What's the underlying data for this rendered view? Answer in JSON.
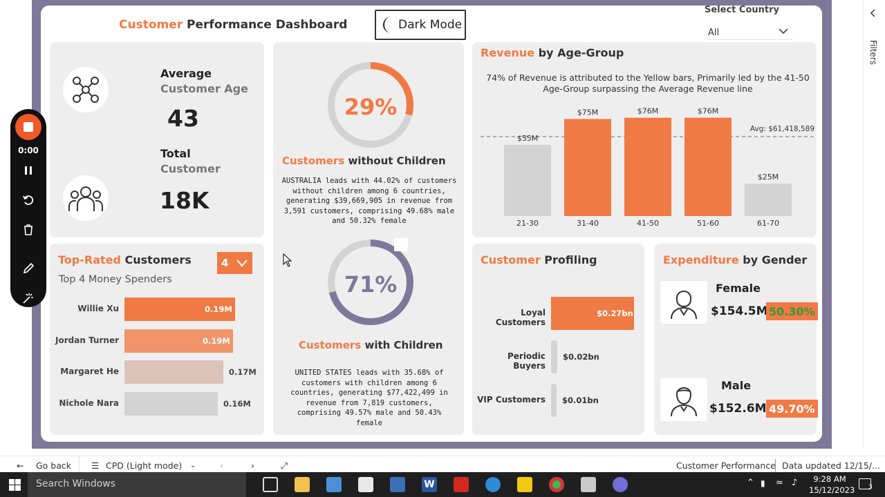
{
  "header": {
    "title_part1": "Customer",
    "title_part2": " Performance Dashboard",
    "dark_mode_label": "Dark Mode",
    "select_country_label": "Select Country",
    "select_country_value": "All"
  },
  "kpi": {
    "age_label": "Average",
    "age_sub": "Customer Age",
    "age_value": "43",
    "total_label": "Total",
    "total_sub": "Customer",
    "total_value": "18K"
  },
  "children": {
    "no_children_pct": "29%",
    "no_children_fraction": 0.29,
    "no_children_title_a": "Customers",
    "no_children_title_b": " without Children",
    "no_children_text": "AUSTRALIA leads with 44.02% of customers without children among 6 countries, generating $39,669,905 in revenue from 3,591 customers, comprising 49.68% male and 50.32% female",
    "with_children_pct": "71%",
    "with_children_fraction": 0.71,
    "with_children_title_a": "Customers",
    "with_children_title_b": " with Children",
    "with_children_text": "UNITED STATES leads with 35.68% of customers with children among 6 countries, generating $77,422,499 in revenue from 7,819 customers, comprising 49.57% male and 50.43% female"
  },
  "age_chart_card": {
    "title_a": "Revenue",
    "title_b": " by Age-Group",
    "subtitle": "74% of Revenue is attributed to the Yellow bars, Primarily led by the 41-50 Age-Group surpassing the Average Revenue line",
    "avg_label": "Avg: $61,418,589"
  },
  "chart_data": [
    {
      "type": "bar",
      "categories": [
        "21-30",
        "31-40",
        "41-50",
        "51-60",
        "61-70"
      ],
      "values": [
        55,
        75,
        76,
        76,
        25
      ],
      "data_labels": [
        "$55M",
        "$75M",
        "$76M",
        "$76M",
        "$25M"
      ],
      "highlight": [
        false,
        true,
        true,
        true,
        false
      ],
      "avg_line": 61.418589,
      "ylim": [
        0,
        80
      ],
      "colors": {
        "highlight": "#f07a44",
        "normal": "#d3d3d3"
      }
    }
  ],
  "top_rated": {
    "title_a": "Top-Rated",
    "title_b": " Customers",
    "subtitle": "Top 4 Money Spenders",
    "count_selected": "4",
    "rows": [
      {
        "name": "Willie Xu",
        "label": "0.19M",
        "value": 0.19,
        "color": "#f07a44",
        "inside": true
      },
      {
        "name": "Jordan Turner",
        "label": "0.19M",
        "value": 0.187,
        "color": "#f1946a",
        "inside": true
      },
      {
        "name": "Margaret He",
        "label": "0.17M",
        "value": 0.17,
        "color": "#dcc3b9",
        "inside": false
      },
      {
        "name": "Nichole Nara",
        "label": "0.16M",
        "value": 0.16,
        "color": "#d3d3d3",
        "inside": false
      }
    ]
  },
  "profiling": {
    "title_a": "Customer",
    "title_b": " Profiling",
    "rows": [
      {
        "name": "Loyal Customers",
        "label": "$0.27bn",
        "value": 0.27
      },
      {
        "name": "Periodic Buyers",
        "label": "$0.02bn",
        "value": 0.02
      },
      {
        "name": "VIP Customers",
        "label": "$0.01bn",
        "value": 0.01
      }
    ]
  },
  "gender": {
    "title_a": "Expenditure",
    "title_b": " by Gender",
    "female_label": "Female",
    "female_amount": "$154.5M",
    "female_pct": "50.30%",
    "male_label": "Male",
    "male_amount": "$152.6M",
    "male_pct": "49.70%"
  },
  "recorder": {
    "time": "0:00"
  },
  "filters_label": "Filters",
  "pbi_bar": {
    "back": "Go back",
    "page": "CPD (Light mode)",
    "report": "Customer Performance",
    "updated": "Data updated 12/15/..."
  },
  "taskbar": {
    "search_placeholder": "Search Windows",
    "time": "9:28 AM",
    "date": "15/12/2023",
    "notif_count": "3"
  }
}
